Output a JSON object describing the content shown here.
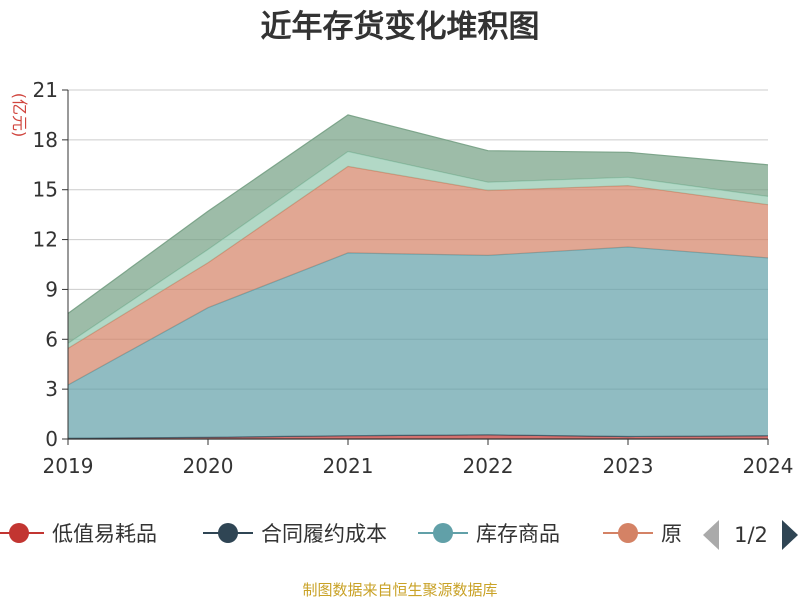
{
  "chart_data": {
    "type": "area",
    "stacked": true,
    "title": "近年存货变化堆积图",
    "ylabel": "(亿元)",
    "x": [
      "2019",
      "2020",
      "2021",
      "2022",
      "2023",
      "2024"
    ],
    "ylim": [
      0,
      21
    ],
    "yticks": [
      0,
      3,
      6,
      9,
      12,
      15,
      18,
      21
    ],
    "grid": true,
    "series": [
      {
        "name": "低值易耗品",
        "color": "#c23531",
        "values": [
          0.05,
          0.1,
          0.2,
          0.25,
          0.15,
          0.2
        ]
      },
      {
        "name": "合同履约成本",
        "color": "#2f4554",
        "values": [
          0.0,
          0.0,
          0.0,
          0.0,
          0.0,
          0.0
        ]
      },
      {
        "name": "库存商品",
        "color": "#61a0a8",
        "values": [
          3.2,
          7.8,
          11.0,
          10.8,
          11.4,
          10.7
        ]
      },
      {
        "name": "原材料",
        "color": "#d48265",
        "values": [
          2.2,
          2.7,
          5.2,
          3.9,
          3.7,
          3.2
        ]
      },
      {
        "name": "",
        "color": "#91c7ae",
        "values": [
          0.3,
          0.8,
          0.9,
          0.5,
          0.5,
          0.5
        ]
      },
      {
        "name": "",
        "color": "#749f83",
        "values": [
          1.8,
          2.3,
          2.2,
          1.9,
          1.5,
          1.9
        ]
      }
    ],
    "legend": {
      "items": [
        "低值易耗品",
        "合同履约成本",
        "库存商品",
        "原"
      ],
      "page": "1/2",
      "placement": "bottom"
    }
  },
  "source_text": "制图数据来自恒生聚源数据库"
}
